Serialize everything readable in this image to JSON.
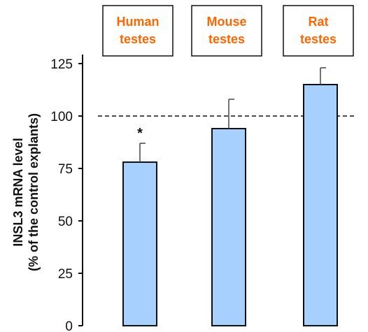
{
  "chart_data": {
    "type": "bar",
    "categories": [
      [
        "Human",
        "testes"
      ],
      [
        "Mouse",
        "testes"
      ],
      [
        "Rat",
        "testes"
      ]
    ],
    "values": [
      78,
      94,
      115
    ],
    "error_upper": [
      87,
      108,
      123
    ],
    "significance": [
      "*",
      "",
      ""
    ],
    "ylabel_lines": [
      "INSL3 mRNA level",
      "(% of the control explants)"
    ],
    "xlabel": "",
    "ylim": [
      0,
      125
    ],
    "yticks": [
      0,
      25,
      50,
      75,
      100,
      125
    ],
    "reference_line": 100,
    "grid": false,
    "colors": {
      "bar_fill": "#a8d0ff",
      "bar_stroke": "#111111",
      "category_text": "#ff6600",
      "reference_line": "#111111"
    }
  }
}
